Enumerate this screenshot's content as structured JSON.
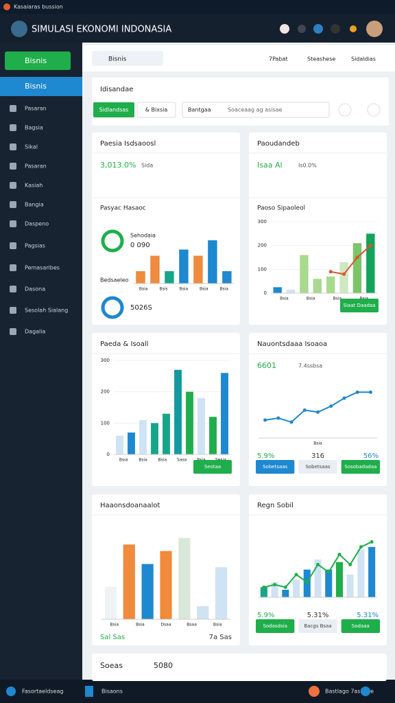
{
  "browser_tab": "Kasaiaras bussion",
  "app_title": "SIMULASI EKONOMI INDONASIA",
  "sidebar": {
    "primary_button": "Bisnis",
    "active": "Bisnis",
    "items": [
      "Pasaran",
      "Bagsia",
      "Sikal",
      "Pasaran",
      "Kasiah",
      "Bangia",
      "Daspeno",
      "Pagsias",
      "Pemasaribes",
      "Dasona",
      "Sesolah Sialang",
      "Dagalia"
    ]
  },
  "topbar": {
    "search": "Bisnis",
    "links": [
      "7Pabat",
      "Steashese",
      "Sidaldias"
    ]
  },
  "filter_card": {
    "title": "Idisandae",
    "buttons": [
      "Sidlandsas",
      "& Bixsia"
    ],
    "input_label": "Bantgaa",
    "input_placeholder": "Soaceaag ag asisae"
  },
  "panels": [
    {
      "title": "Paesia  Isdsaoosl",
      "stat_top": [
        "3,013.0%",
        "Sida"
      ],
      "subtitle": "Pasyac Hasaoc",
      "side_texts": [
        "Sehodaia",
        "0 090",
        "Bedsaeleo",
        "5026S"
      ],
      "chart": {
        "ylim": [
          0,
          100
        ],
        "bars": [
          20,
          45,
          20,
          55,
          45,
          70,
          20
        ],
        "bar_colors": [
          "#f08a3c",
          "#f08a3c",
          "#17a589",
          "#1e88d0",
          "#f08a3c",
          "#1e88d0",
          "#1e88d0"
        ],
        "categories": [
          "Bsia",
          "Bsis",
          "Bsia",
          "Bsia",
          "Bsia"
        ]
      }
    },
    {
      "title": "Paoudandeb",
      "stat_top": [
        "Isaa Al",
        "Is0.0%"
      ],
      "subtitle": "Paoso Sipaoleol",
      "chart": {
        "ylim": [
          0,
          300
        ],
        "yticks": [
          0,
          100,
          200,
          300
        ],
        "bars": [
          25,
          15,
          160,
          60,
          70,
          130,
          210,
          250
        ],
        "bar_colors": [
          "#1e88d0",
          "#cfe3f5",
          "#a9d98e",
          "#a9d98e",
          "#a9d98e",
          "#cfe8c0",
          "#7cc46a",
          "#13a35a"
        ],
        "line": [
          null,
          null,
          null,
          null,
          90,
          80,
          150,
          200
        ],
        "line_color": "#d9542b",
        "categories": [
          "Bsia",
          "Bsia",
          "Bsia",
          "Bsia"
        ]
      },
      "buttons": [
        "Siaat Daadaa"
      ]
    },
    {
      "title": "Paeda & Isoall",
      "chart": {
        "ylim": [
          0,
          300
        ],
        "yticks": [
          0,
          100,
          200,
          300
        ],
        "bars": [
          60,
          70,
          110,
          100,
          130,
          270,
          200,
          180,
          120,
          260
        ],
        "bar_colors": [
          "#cfe3f5",
          "#1e88d0",
          "#cfe3f5",
          "#17a589",
          "#17a589",
          "#139aa0",
          "#1fae4b",
          "#cfe3f5",
          "#1fae4b",
          "#1e88d0"
        ],
        "categories": [
          "Bsia",
          "Bsia",
          "Bsia",
          "Sasa",
          "Bsia",
          "Sesia"
        ]
      },
      "buttons": [
        "Seotaa"
      ]
    },
    {
      "title": "Nauontsdaaa Isoaoa",
      "stat_top": [
        "6601",
        "7.4ssbsa"
      ],
      "chart": {
        "ylim": [
          0,
          300
        ],
        "line": [
          90,
          100,
          80,
          140,
          130,
          160,
          200,
          230,
          230
        ],
        "line_color": "#1e88d0",
        "categories": [
          "Bsia"
        ]
      },
      "stats_bottom": [
        "5.9%",
        "316",
        "56%"
      ],
      "buttons": [
        "Sobetsaas",
        "Sobetsaas",
        "Sosobadadaa"
      ]
    },
    {
      "title": "Haaonsdoanaalot",
      "chart": {
        "ylim": [
          0,
          300
        ],
        "bars": [
          100,
          230,
          170,
          210,
          250,
          40,
          160
        ],
        "bar_colors": [
          "#f0f3f6",
          "#f08a3c",
          "#1e88d0",
          "#f08a3c",
          "#d9e8d9",
          "#cfe3f5",
          "#cfe3f5"
        ],
        "categories": [
          "Bsia",
          "Bsia",
          "Dsaa",
          "Bsaa",
          "Bsia"
        ]
      },
      "stats_bottom": [
        "Sal Sas",
        "7a Sas"
      ]
    },
    {
      "title": "Regn Sobil",
      "chart": {
        "ylim": [
          0,
          300
        ],
        "bars": [
          40,
          60,
          30,
          70,
          110,
          150,
          110,
          140,
          90,
          190,
          200
        ],
        "bar_colors": [
          "#17a589",
          "#cfe3f5",
          "#1e88d0",
          "#cfe3f5",
          "#1e88d0",
          "#cfe3f5",
          "#1e88d0",
          "#1fae4b",
          "#cfe3f5",
          "#cfe3f5",
          "#1e88d0"
        ],
        "line": [
          40,
          50,
          40,
          90,
          60,
          130,
          100,
          170,
          130,
          200,
          220
        ],
        "line_color": "#1fae4b"
      },
      "stats_bottom": [
        "5.9%",
        "5.31%",
        "5.31%"
      ],
      "buttons": [
        "Sodasdsia",
        "Bacgs Bsaa",
        "Sodaaa"
      ]
    }
  ],
  "bottom_card": {
    "title": "Soeas",
    "value": "5080"
  },
  "footer": {
    "left": "Fasortaeldseag",
    "middle": "Bisaons",
    "right": "Bastlago 7asBase"
  }
}
